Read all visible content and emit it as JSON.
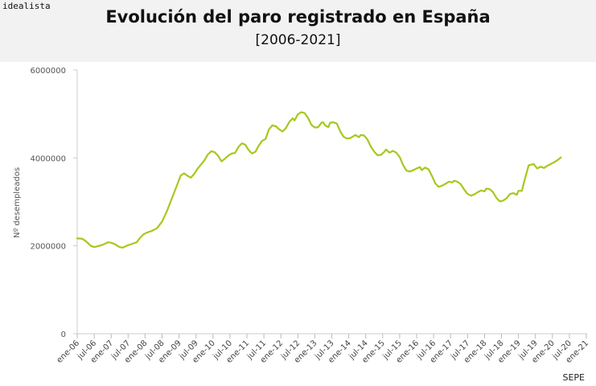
{
  "brand": "idealista",
  "chart_data": {
    "type": "line",
    "title": "Evolución del paro registrado en España",
    "subtitle": "[2006-2021]",
    "xlabel": "",
    "ylabel": "Nº desempleados",
    "source": "SEPE",
    "ylim": [
      0,
      6000000
    ],
    "yticks": [
      {
        "value": 0,
        "label": "0"
      },
      {
        "value": 2000000,
        "label": "2000000"
      },
      {
        "value": 4000000,
        "label": "4000000"
      },
      {
        "value": 6000000,
        "label": "6000000"
      }
    ],
    "x_tick_labels": [
      "ene-06",
      "jul-06",
      "ene-07",
      "jul-07",
      "ene-08",
      "jul-08",
      "ene-09",
      "jul-09",
      "ene-10",
      "jul-10",
      "ene-11",
      "jul-11",
      "ene-12",
      "jul-12",
      "ene-13",
      "jul-13",
      "ene-14",
      "jul-14",
      "ene-15",
      "jul-15",
      "ene-16",
      "jul-16",
      "ene-17",
      "jul-17",
      "ene-18",
      "jul-18",
      "ene-19",
      "jul-19",
      "ene-20",
      "jul-20",
      "ene-21"
    ],
    "series": [
      {
        "name": "Paro registrado",
        "color": "#a6c81e",
        "points": [
          [
            0,
            2170000
          ],
          [
            0.3,
            2160000
          ],
          [
            0.5,
            2110000
          ],
          [
            0.8,
            2000000
          ],
          [
            1.0,
            1970000
          ],
          [
            1.2,
            1990000
          ],
          [
            1.4,
            2010000
          ],
          [
            1.6,
            2040000
          ],
          [
            1.8,
            2080000
          ],
          [
            2.0,
            2070000
          ],
          [
            2.2,
            2040000
          ],
          [
            2.5,
            1970000
          ],
          [
            2.7,
            1960000
          ],
          [
            2.9,
            2000000
          ],
          [
            3.2,
            2040000
          ],
          [
            3.5,
            2080000
          ],
          [
            3.7,
            2180000
          ],
          [
            3.9,
            2260000
          ],
          [
            4.1,
            2300000
          ],
          [
            4.4,
            2340000
          ],
          [
            4.7,
            2400000
          ],
          [
            5.0,
            2550000
          ],
          [
            5.3,
            2800000
          ],
          [
            5.6,
            3100000
          ],
          [
            5.9,
            3400000
          ],
          [
            6.1,
            3600000
          ],
          [
            6.3,
            3650000
          ],
          [
            6.5,
            3590000
          ],
          [
            6.7,
            3550000
          ],
          [
            6.9,
            3640000
          ],
          [
            7.1,
            3760000
          ],
          [
            7.3,
            3850000
          ],
          [
            7.5,
            3950000
          ],
          [
            7.7,
            4080000
          ],
          [
            7.9,
            4150000
          ],
          [
            8.1,
            4130000
          ],
          [
            8.3,
            4050000
          ],
          [
            8.5,
            3920000
          ],
          [
            8.7,
            3980000
          ],
          [
            8.9,
            4050000
          ],
          [
            9.1,
            4100000
          ],
          [
            9.3,
            4110000
          ],
          [
            9.5,
            4250000
          ],
          [
            9.7,
            4330000
          ],
          [
            9.9,
            4300000
          ],
          [
            10.1,
            4180000
          ],
          [
            10.3,
            4100000
          ],
          [
            10.5,
            4140000
          ],
          [
            10.7,
            4280000
          ],
          [
            10.9,
            4390000
          ],
          [
            11.1,
            4430000
          ],
          [
            11.3,
            4650000
          ],
          [
            11.5,
            4740000
          ],
          [
            11.7,
            4720000
          ],
          [
            11.9,
            4650000
          ],
          [
            12.1,
            4600000
          ],
          [
            12.3,
            4680000
          ],
          [
            12.5,
            4820000
          ],
          [
            12.7,
            4900000
          ],
          [
            12.8,
            4850000
          ],
          [
            13.0,
            4990000
          ],
          [
            13.2,
            5040000
          ],
          [
            13.4,
            5020000
          ],
          [
            13.6,
            4910000
          ],
          [
            13.8,
            4750000
          ],
          [
            14.0,
            4690000
          ],
          [
            14.2,
            4700000
          ],
          [
            14.4,
            4800000
          ],
          [
            14.5,
            4810000
          ],
          [
            14.6,
            4740000
          ],
          [
            14.8,
            4700000
          ],
          [
            14.9,
            4800000
          ],
          [
            15.1,
            4810000
          ],
          [
            15.3,
            4780000
          ],
          [
            15.5,
            4600000
          ],
          [
            15.7,
            4480000
          ],
          [
            15.9,
            4440000
          ],
          [
            16.1,
            4450000
          ],
          [
            16.3,
            4500000
          ],
          [
            16.4,
            4520000
          ],
          [
            16.6,
            4470000
          ],
          [
            16.7,
            4520000
          ],
          [
            16.9,
            4510000
          ],
          [
            17.1,
            4420000
          ],
          [
            17.3,
            4260000
          ],
          [
            17.5,
            4140000
          ],
          [
            17.7,
            4060000
          ],
          [
            17.9,
            4070000
          ],
          [
            18.1,
            4140000
          ],
          [
            18.2,
            4190000
          ],
          [
            18.4,
            4120000
          ],
          [
            18.6,
            4160000
          ],
          [
            18.8,
            4120000
          ],
          [
            19.0,
            4020000
          ],
          [
            19.2,
            3840000
          ],
          [
            19.4,
            3710000
          ],
          [
            19.6,
            3690000
          ],
          [
            19.8,
            3720000
          ],
          [
            20.0,
            3760000
          ],
          [
            20.2,
            3790000
          ],
          [
            20.3,
            3720000
          ],
          [
            20.5,
            3780000
          ],
          [
            20.7,
            3740000
          ],
          [
            20.9,
            3590000
          ],
          [
            21.1,
            3420000
          ],
          [
            21.3,
            3340000
          ],
          [
            21.5,
            3370000
          ],
          [
            21.7,
            3410000
          ],
          [
            21.9,
            3460000
          ],
          [
            22.1,
            3440000
          ],
          [
            22.2,
            3480000
          ],
          [
            22.4,
            3460000
          ],
          [
            22.6,
            3400000
          ],
          [
            22.8,
            3280000
          ],
          [
            23.0,
            3180000
          ],
          [
            23.2,
            3140000
          ],
          [
            23.4,
            3170000
          ],
          [
            23.6,
            3220000
          ],
          [
            23.8,
            3260000
          ],
          [
            24.0,
            3240000
          ],
          [
            24.1,
            3300000
          ],
          [
            24.3,
            3290000
          ],
          [
            24.5,
            3220000
          ],
          [
            24.7,
            3090000
          ],
          [
            24.9,
            3010000
          ],
          [
            25.1,
            3030000
          ],
          [
            25.3,
            3080000
          ],
          [
            25.5,
            3180000
          ],
          [
            25.7,
            3200000
          ],
          [
            25.9,
            3160000
          ],
          [
            26.0,
            3250000
          ],
          [
            26.2,
            3250000
          ],
          [
            26.4,
            3550000
          ],
          [
            26.6,
            3830000
          ],
          [
            26.9,
            3860000
          ],
          [
            27.1,
            3760000
          ],
          [
            27.3,
            3800000
          ],
          [
            27.5,
            3770000
          ],
          [
            27.7,
            3820000
          ],
          [
            27.9,
            3860000
          ],
          [
            28.1,
            3900000
          ],
          [
            28.3,
            3950000
          ],
          [
            28.5,
            4010000
          ]
        ]
      }
    ]
  }
}
